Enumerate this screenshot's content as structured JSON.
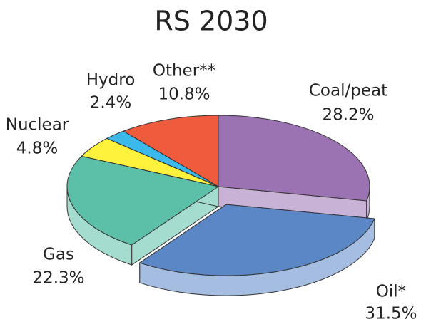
{
  "chart_data": {
    "type": "pie3d",
    "title": "RS 2030",
    "categories": [
      "Coal/peat",
      "Oil*",
      "Gas",
      "Nuclear",
      "Hydro",
      "Other**"
    ],
    "values": [
      28.2,
      31.5,
      22.3,
      4.8,
      2.4,
      10.8
    ],
    "value_labels": [
      "28.2%",
      "31.5%",
      "22.3%",
      "4.8%",
      "2.4%",
      "10.8%"
    ],
    "colors": [
      "#9b73b2",
      "#5b87c6",
      "#5cc0a9",
      "#fff23c",
      "#3bb9ea",
      "#ef5b3d"
    ]
  }
}
